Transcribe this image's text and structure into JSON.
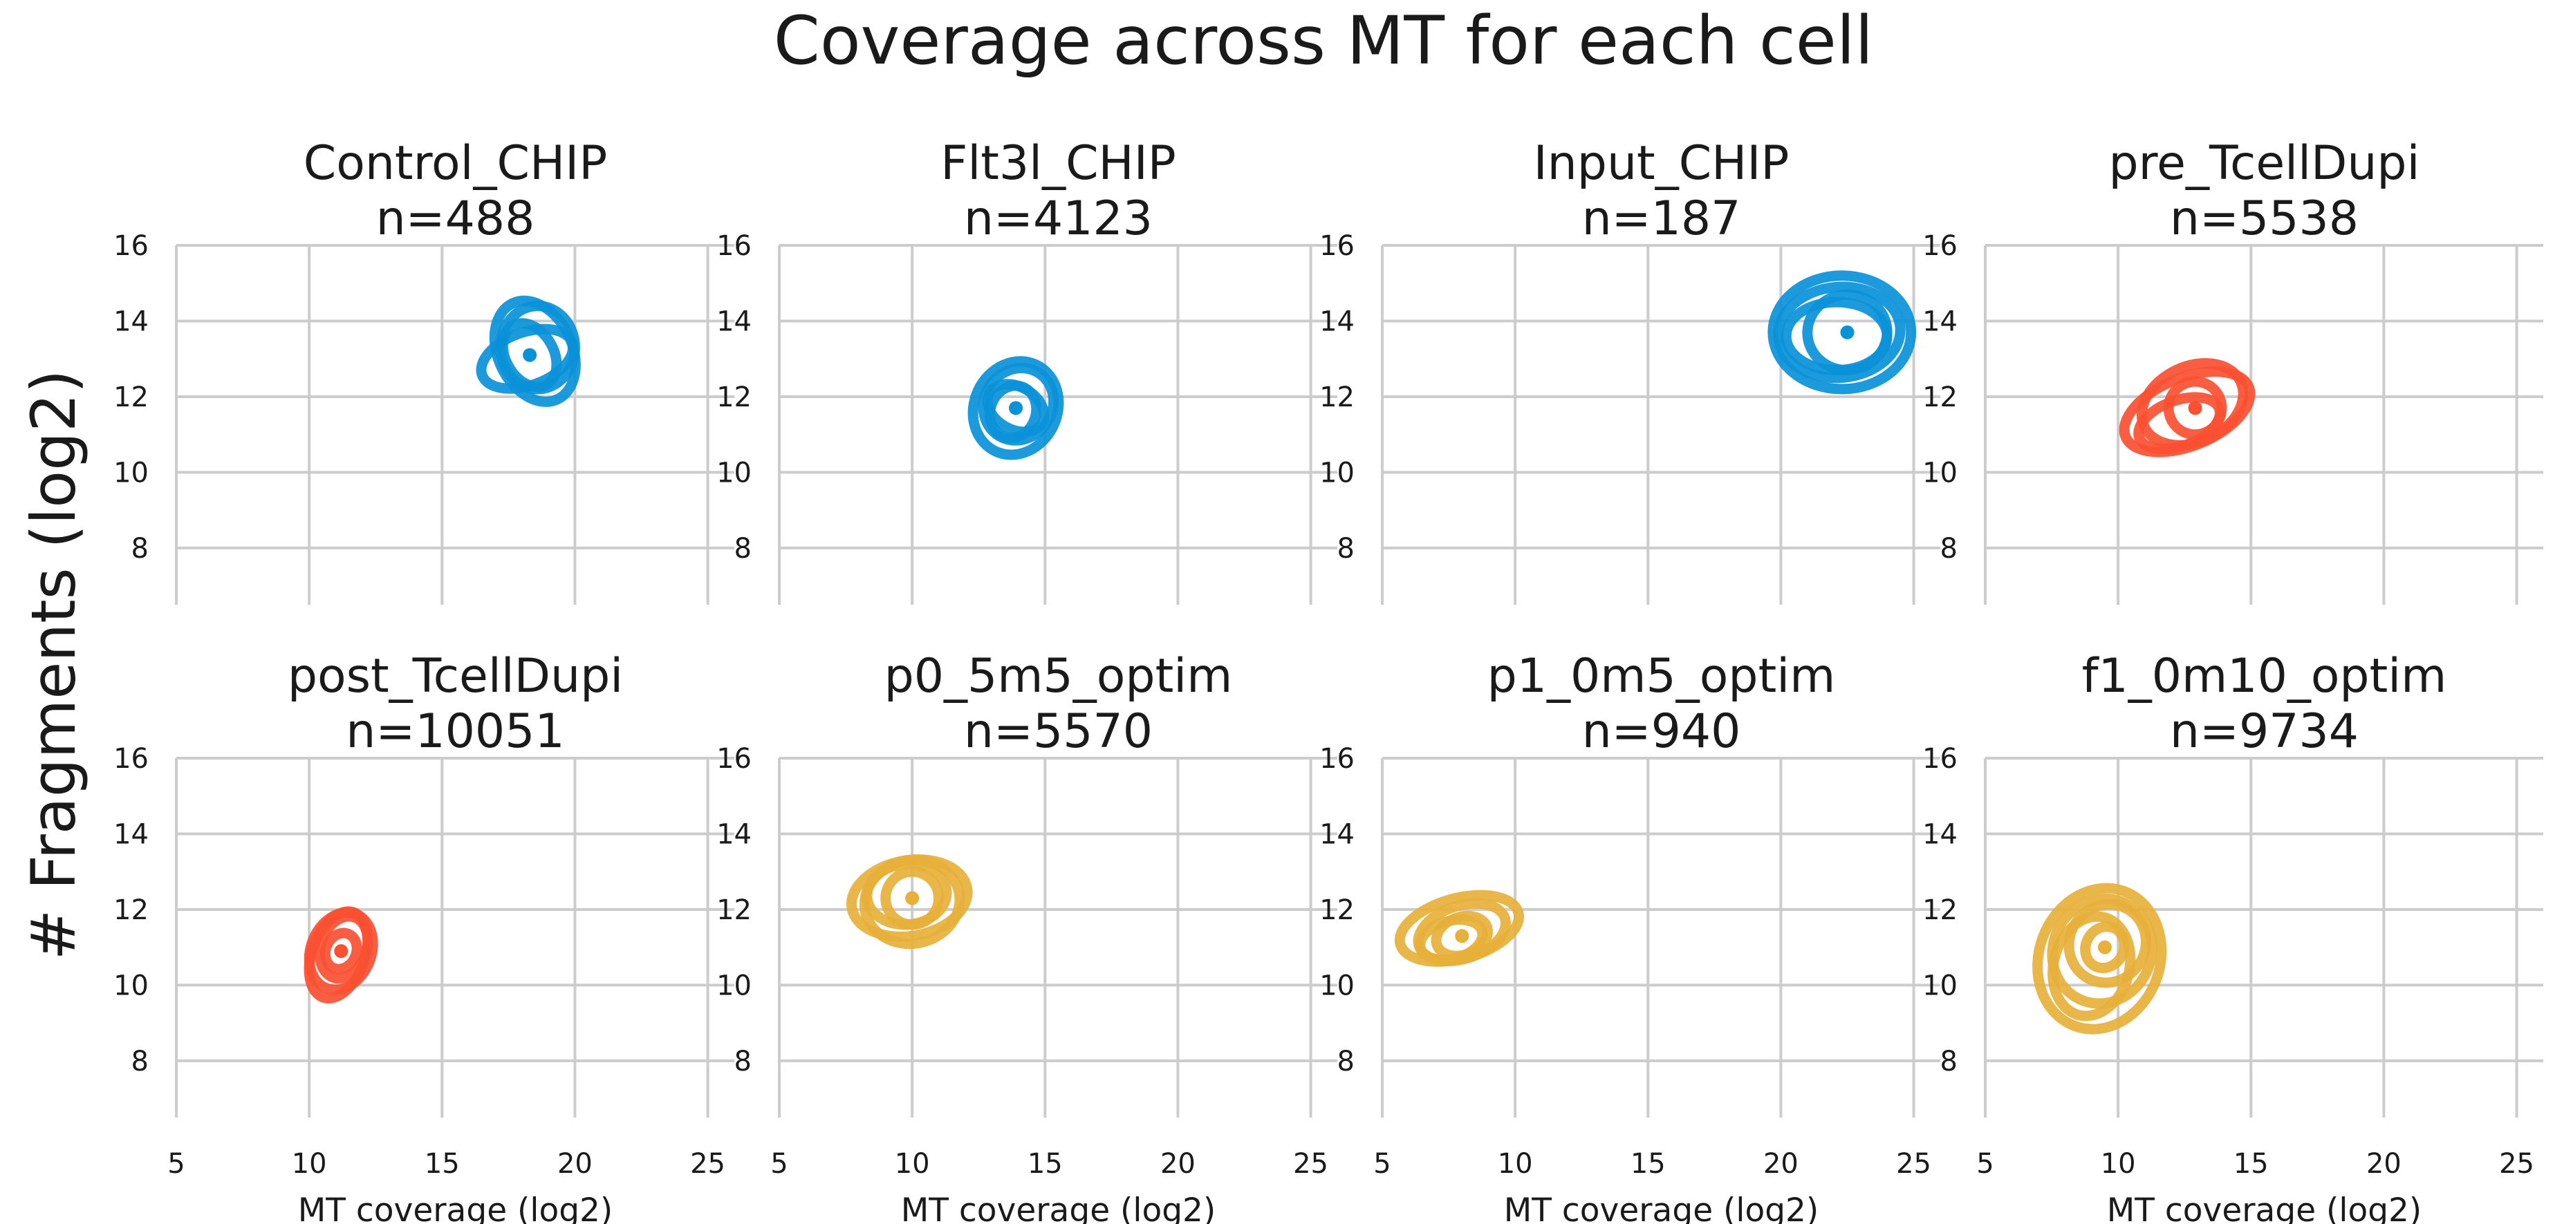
{
  "figure": {
    "title": "Coverage across MT for each cell",
    "ylabel": "# Fragments (log2)"
  },
  "chart_data": [
    {
      "type": "scatter",
      "title": "Control_CHIP",
      "subtitle": "n=488",
      "color": "#0a91d8",
      "xlabel": "",
      "ylabel": "",
      "xlim": [
        5,
        26
      ],
      "ylim": [
        6.5,
        16
      ],
      "xticks": [],
      "yticks": [
        8,
        10,
        12,
        14,
        16
      ],
      "density": [
        {
          "cx": 18.3,
          "cy": 13.1,
          "rx": 0.9,
          "ry": 0.9,
          "rot": 30
        },
        {
          "cx": 18.5,
          "cy": 13.2,
          "rx": 1.4,
          "ry": 1.4,
          "rot": 25
        },
        {
          "cx": 18.2,
          "cy": 13.0,
          "rx": 1.8,
          "ry": 0.7,
          "rot": 20
        },
        {
          "cx": 18.6,
          "cy": 13.3,
          "rx": 1.4,
          "ry": 1.1,
          "rot": 0
        }
      ]
    },
    {
      "type": "scatter",
      "title": "Flt3l_CHIP",
      "subtitle": "n=4123",
      "color": "#0a91d8",
      "xlabel": "",
      "ylabel": "",
      "xlim": [
        5,
        26
      ],
      "ylim": [
        6.5,
        16
      ],
      "xticks": [],
      "yticks": [
        8,
        10,
        12,
        14,
        16
      ],
      "density": [
        {
          "cx": 13.9,
          "cy": 11.7,
          "rx": 0.8,
          "ry": 0.8,
          "rot": 60
        },
        {
          "cx": 13.9,
          "cy": 11.7,
          "rx": 1.8,
          "ry": 1.1,
          "rot": 65
        },
        {
          "cx": 14.0,
          "cy": 11.8,
          "rx": 1.4,
          "ry": 0.9,
          "rot": 55
        },
        {
          "cx": 13.8,
          "cy": 11.6,
          "rx": 1.0,
          "ry": 0.6,
          "rot": 70
        }
      ]
    },
    {
      "type": "scatter",
      "title": "Input_CHIP",
      "subtitle": "n=187",
      "color": "#0a91d8",
      "xlabel": "",
      "ylabel": "",
      "xlim": [
        5,
        26
      ],
      "ylim": [
        6.5,
        16
      ],
      "xticks": [],
      "yticks": [
        8,
        10,
        12,
        14,
        16
      ],
      "density": [
        {
          "cx": 22.5,
          "cy": 13.7,
          "rx": 1.5,
          "ry": 1.0,
          "rot": 5
        },
        {
          "cx": 22.2,
          "cy": 13.7,
          "rx": 2.3,
          "ry": 1.2,
          "rot": 5
        },
        {
          "cx": 22.3,
          "cy": 13.7,
          "rx": 2.6,
          "ry": 1.5,
          "rot": 0
        },
        {
          "cx": 22.1,
          "cy": 13.6,
          "rx": 1.9,
          "ry": 0.9,
          "rot": 0
        }
      ]
    },
    {
      "type": "scatter",
      "title": "pre_TcellDupi",
      "subtitle": "n=5538",
      "color": "#fa5032",
      "xlabel": "",
      "ylabel": "",
      "xlim": [
        5,
        26
      ],
      "ylim": [
        6.5,
        16
      ],
      "xticks": [],
      "yticks": [
        8,
        10,
        12,
        14,
        16
      ],
      "density": [
        {
          "cx": 12.9,
          "cy": 11.7,
          "rx": 1.0,
          "ry": 0.7,
          "rot": 25
        },
        {
          "cx": 12.6,
          "cy": 11.6,
          "rx": 2.5,
          "ry": 0.9,
          "rot": 22
        },
        {
          "cx": 12.8,
          "cy": 11.8,
          "rx": 2.0,
          "ry": 1.0,
          "rot": 25
        },
        {
          "cx": 12.3,
          "cy": 11.3,
          "rx": 1.6,
          "ry": 0.6,
          "rot": 20
        }
      ]
    },
    {
      "type": "scatter",
      "title": "post_TcellDupi",
      "subtitle": "n=10051",
      "color": "#fa5032",
      "xlabel": "MT coverage (log2)",
      "ylabel": "",
      "xlim": [
        5,
        26
      ],
      "ylim": [
        6.5,
        16
      ],
      "xticks": [
        5,
        10,
        15,
        20,
        25
      ],
      "yticks": [
        8,
        10,
        12,
        14,
        16
      ],
      "density": [
        {
          "cx": 11.2,
          "cy": 10.9,
          "rx": 0.7,
          "ry": 0.4,
          "rot": 65
        },
        {
          "cx": 11.2,
          "cy": 10.9,
          "rx": 1.5,
          "ry": 0.8,
          "rot": 68
        },
        {
          "cx": 11.3,
          "cy": 11.0,
          "rx": 1.2,
          "ry": 0.6,
          "rot": 70
        },
        {
          "cx": 11.1,
          "cy": 10.8,
          "rx": 1.7,
          "ry": 0.7,
          "rot": 70
        }
      ]
    },
    {
      "type": "scatter",
      "title": "p0_5m5_optim",
      "subtitle": "n=5570",
      "color": "#e6b03a",
      "xlabel": "MT coverage (log2)",
      "ylabel": "",
      "xlim": [
        5,
        26
      ],
      "ylim": [
        6.5,
        16
      ],
      "xticks": [
        5,
        10,
        15,
        20,
        25
      ],
      "yticks": [
        8,
        10,
        12,
        14,
        16
      ],
      "density": [
        {
          "cx": 10.0,
          "cy": 12.3,
          "rx": 1.0,
          "ry": 0.7,
          "rot": 15
        },
        {
          "cx": 9.9,
          "cy": 12.3,
          "rx": 2.2,
          "ry": 1.0,
          "rot": 10
        },
        {
          "cx": 10.0,
          "cy": 12.2,
          "rx": 1.8,
          "ry": 1.1,
          "rot": 12
        },
        {
          "cx": 9.8,
          "cy": 12.4,
          "rx": 1.5,
          "ry": 0.8,
          "rot": 5
        }
      ]
    },
    {
      "type": "scatter",
      "title": "p1_0m5_optim",
      "subtitle": "n=940",
      "color": "#e6b03a",
      "xlabel": "MT coverage (log2)",
      "ylabel": "",
      "xlim": [
        5,
        26
      ],
      "ylim": [
        6.5,
        16
      ],
      "xticks": [
        5,
        10,
        15,
        20,
        25
      ],
      "yticks": [
        8,
        10,
        12,
        14,
        16
      ],
      "density": [
        {
          "cx": 8.0,
          "cy": 11.3,
          "rx": 1.0,
          "ry": 0.5,
          "rot": 20
        },
        {
          "cx": 7.9,
          "cy": 11.5,
          "rx": 2.3,
          "ry": 0.8,
          "rot": 15
        },
        {
          "cx": 8.0,
          "cy": 11.4,
          "rx": 1.7,
          "ry": 0.7,
          "rot": 18
        },
        {
          "cx": 7.6,
          "cy": 11.2,
          "rx": 1.2,
          "ry": 0.5,
          "rot": 15
        }
      ]
    },
    {
      "type": "scatter",
      "title": "f1_0m10_optim",
      "subtitle": "n=9734",
      "color": "#e6b03a",
      "xlabel": "MT coverage (log2)",
      "ylabel": "",
      "xlim": [
        5,
        26
      ],
      "ylim": [
        6.5,
        16
      ],
      "xticks": [
        5,
        10,
        15,
        20,
        25
      ],
      "yticks": [
        8,
        10,
        12,
        14,
        16
      ],
      "density": [
        {
          "cx": 9.5,
          "cy": 11.0,
          "rx": 0.8,
          "ry": 0.5,
          "rot": 60
        },
        {
          "cx": 9.4,
          "cy": 10.9,
          "rx": 2.0,
          "ry": 1.3,
          "rot": 65
        },
        {
          "cx": 9.3,
          "cy": 10.7,
          "rx": 2.7,
          "ry": 1.6,
          "rot": 70
        },
        {
          "cx": 9.6,
          "cy": 11.1,
          "rx": 1.5,
          "ry": 1.0,
          "rot": 55
        },
        {
          "cx": 9.0,
          "cy": 10.5,
          "rx": 1.9,
          "ry": 1.0,
          "rot": 75
        }
      ]
    }
  ]
}
